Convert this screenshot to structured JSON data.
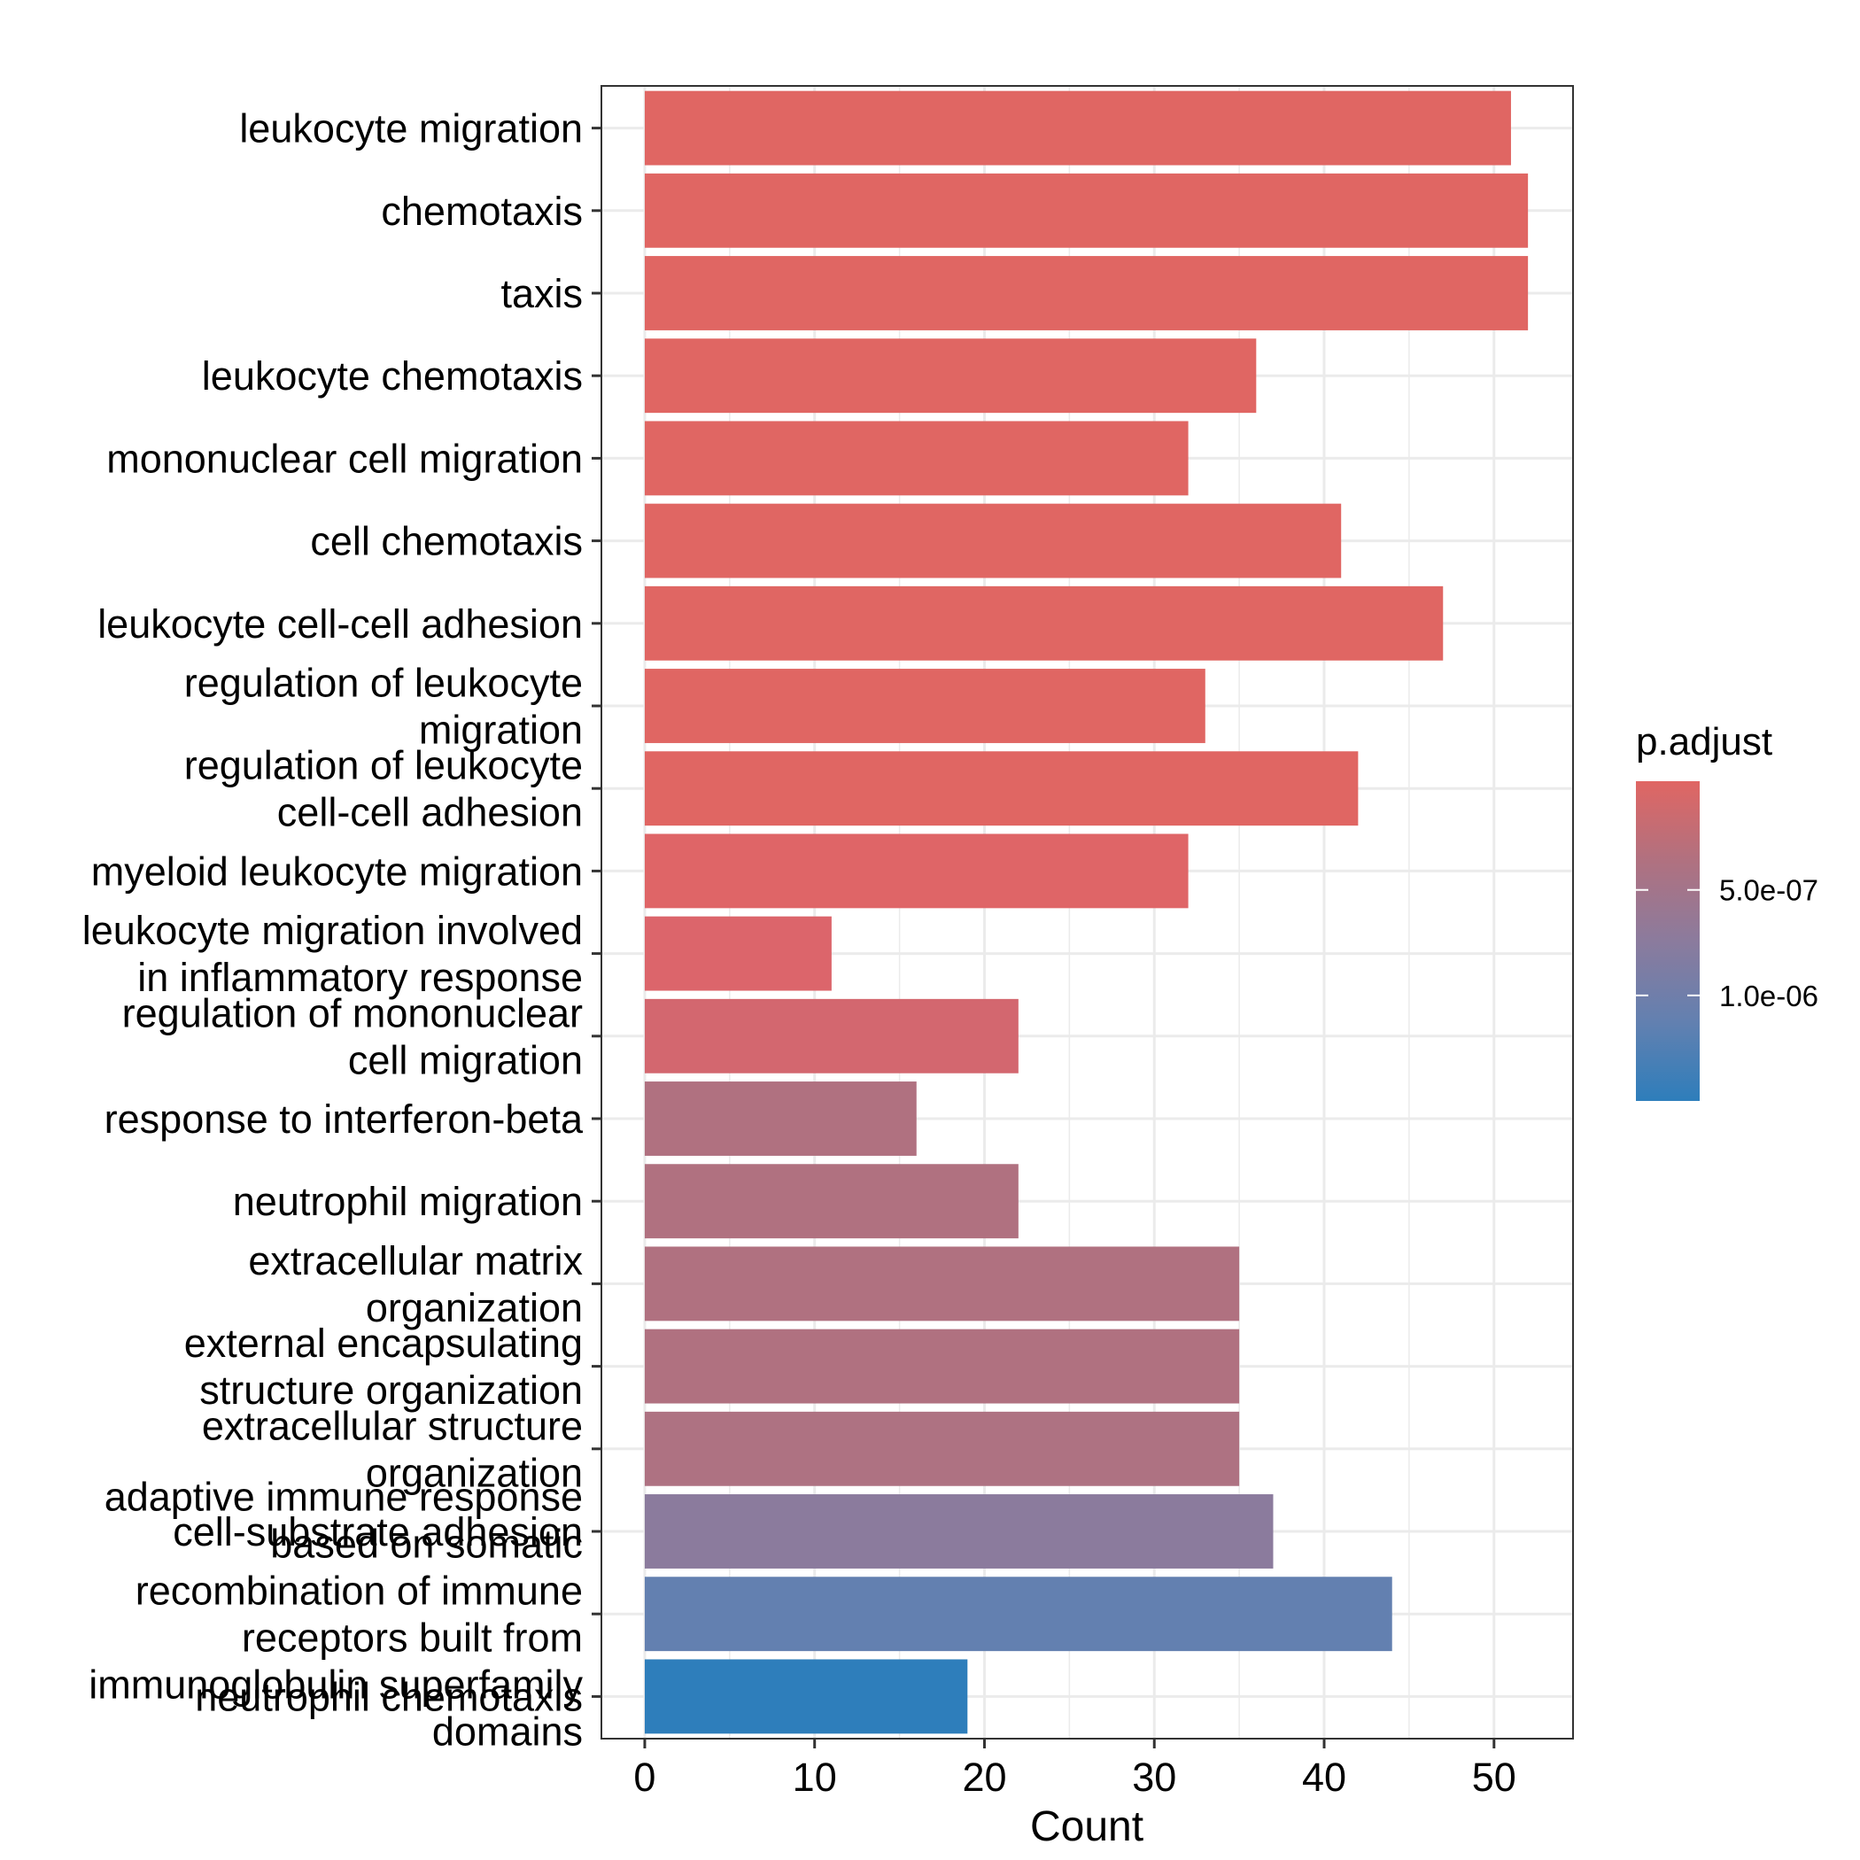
{
  "chart_data": {
    "type": "bar",
    "orientation": "horizontal",
    "xlabel": "Count",
    "xlim": [
      -2.5,
      54.6
    ],
    "xticks": [
      0,
      10,
      20,
      30,
      40,
      50
    ],
    "grid": true,
    "legend": {
      "title": "p.adjust",
      "position": "right",
      "type": "colorbar",
      "colors": [
        "#e06663",
        "#b07180",
        "#8b7b9d",
        "#6380b0",
        "#2e7ebb"
      ],
      "ticks": [
        "5.0e-07",
        "1.0e-06"
      ]
    },
    "categories": [
      [
        "leukocyte migration"
      ],
      [
        "chemotaxis"
      ],
      [
        "taxis"
      ],
      [
        "leukocyte chemotaxis"
      ],
      [
        "mononuclear cell migration"
      ],
      [
        "cell chemotaxis"
      ],
      [
        "leukocyte cell-cell adhesion"
      ],
      [
        "regulation of leukocyte",
        "migration"
      ],
      [
        "regulation of leukocyte",
        "cell-cell adhesion"
      ],
      [
        "myeloid leukocyte migration"
      ],
      [
        "leukocyte migration involved",
        "in inflammatory response"
      ],
      [
        "regulation of mononuclear",
        "cell migration"
      ],
      [
        "response to interferon-beta"
      ],
      [
        "neutrophil migration"
      ],
      [
        "extracellular matrix",
        "organization"
      ],
      [
        "external encapsulating",
        "structure organization"
      ],
      [
        "extracellular structure",
        "organization"
      ],
      [
        "cell-substrate adhesion"
      ],
      [
        "adaptive immune response",
        "based on somatic",
        "recombination of immune",
        "receptors built from",
        "immunoglobulin superfamily",
        "domains"
      ],
      [
        "neutrophil chemotaxis"
      ]
    ],
    "values": [
      51,
      52,
      52,
      36,
      32,
      41,
      47,
      33,
      42,
      32,
      11,
      22,
      16,
      22,
      35,
      35,
      35,
      37,
      44,
      19
    ],
    "bar_colors": [
      "#e06663",
      "#e06663",
      "#e06663",
      "#e06663",
      "#e06663",
      "#e06663",
      "#e06663",
      "#e06663",
      "#e06663",
      "#df6567",
      "#dc656b",
      "#d3676f",
      "#b07180",
      "#b07180",
      "#b07180",
      "#b07180",
      "#ae7282",
      "#8b7b9d",
      "#6380b0",
      "#2e7ebb"
    ]
  }
}
